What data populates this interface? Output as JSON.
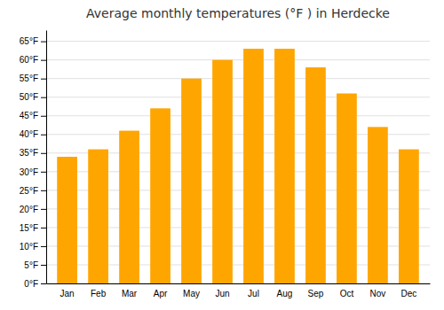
{
  "chart_data": {
    "type": "bar",
    "title": "Average monthly temperatures (°F ) in Herdecke",
    "categories": [
      "Jan",
      "Feb",
      "Mar",
      "Apr",
      "May",
      "Jun",
      "Jul",
      "Aug",
      "Sep",
      "Oct",
      "Nov",
      "Dec"
    ],
    "values": [
      34,
      36,
      41,
      47,
      55,
      60,
      63,
      63,
      58,
      51,
      42,
      36
    ],
    "color": "#FFA500",
    "ylim": [
      0,
      68
    ],
    "yticks": [
      {
        "value": 0,
        "label": "0°F"
      },
      {
        "value": 5,
        "label": "5°F"
      },
      {
        "value": 10,
        "label": "10°F"
      },
      {
        "value": 15,
        "label": "15°F"
      },
      {
        "value": 20,
        "label": "20°F"
      },
      {
        "value": 25,
        "label": "25°F"
      },
      {
        "value": 30,
        "label": "30°F"
      },
      {
        "value": 35,
        "label": "35°F"
      },
      {
        "value": 40,
        "label": "40°F"
      },
      {
        "value": 45,
        "label": "45°F"
      },
      {
        "value": 50,
        "label": "50°F"
      },
      {
        "value": 55,
        "label": "55°F"
      },
      {
        "value": 60,
        "label": "60°F"
      },
      {
        "value": 65,
        "label": "65°F"
      }
    ],
    "grid": true
  }
}
